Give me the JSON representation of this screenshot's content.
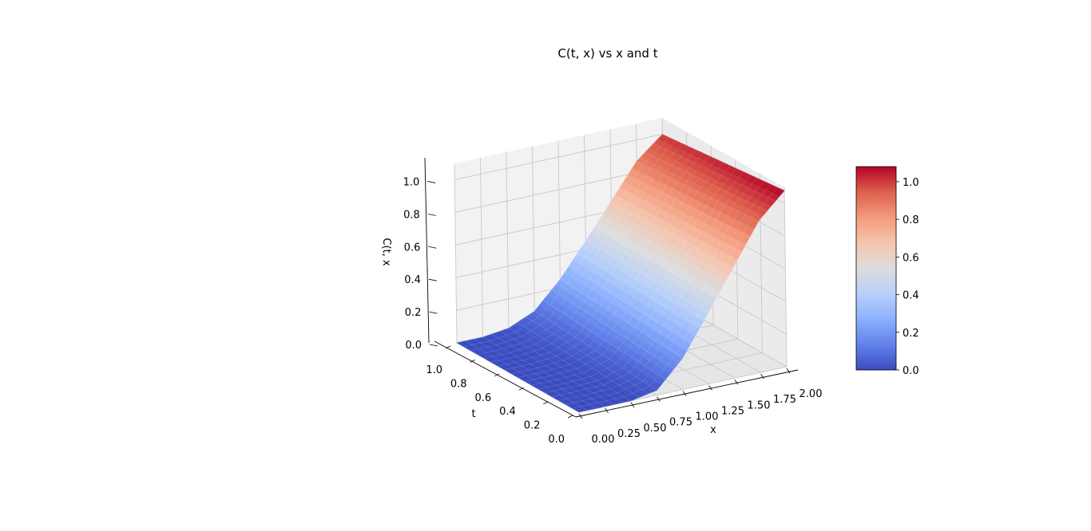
{
  "chart_data": {
    "type": "surface",
    "title": "C(t, x) vs x and t",
    "xlabel": "x",
    "ylabel": "t",
    "zlabel": "C(t, x",
    "x_ticks": [
      "0.00",
      "0.25",
      "0.50",
      "0.75",
      "1.00",
      "1.25",
      "1.50",
      "1.75",
      "2.00"
    ],
    "t_ticks": [
      "0.0",
      "0.2",
      "0.4",
      "0.6",
      "0.8",
      "1.0"
    ],
    "z_ticks": [
      "0.0",
      "0.2",
      "0.4",
      "0.6",
      "0.8",
      "1.0"
    ],
    "colorbar_ticks": [
      "0.0",
      "0.2",
      "0.4",
      "0.6",
      "0.8",
      "1.0"
    ],
    "xlim": [
      0,
      2
    ],
    "tlim": [
      0,
      1
    ],
    "zlim": [
      0,
      1.1
    ],
    "colorbar_range": [
      0,
      1.08
    ],
    "colormap": "coolwarm",
    "grid": true,
    "surface_samples": {
      "x": [
        0.0,
        0.25,
        0.5,
        0.75,
        1.0,
        1.25,
        1.5,
        1.75,
        2.0
      ],
      "t": [
        0.0,
        0.5,
        1.0
      ],
      "C": [
        [
          0.0,
          0.0,
          0.0,
          0.03,
          0.19,
          0.43,
          0.68,
          0.93,
          1.08
        ],
        [
          0.0,
          0.0,
          0.01,
          0.06,
          0.22,
          0.44,
          0.67,
          0.9,
          1.04
        ],
        [
          0.0,
          0.0,
          0.02,
          0.09,
          0.25,
          0.45,
          0.66,
          0.87,
          1.0
        ]
      ]
    }
  }
}
